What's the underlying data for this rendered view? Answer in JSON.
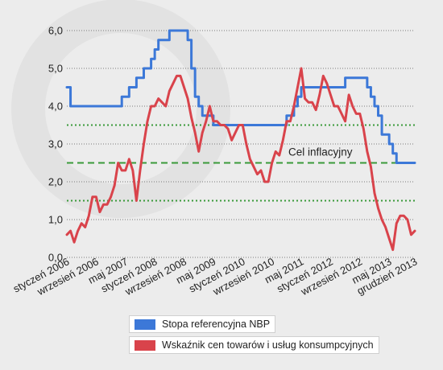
{
  "chart_data": {
    "type": "line",
    "ylim": [
      0,
      6.5
    ],
    "y_ticks": [
      "0,0",
      "1,0",
      "2,0",
      "3,0",
      "4,0",
      "5,0",
      "6,0"
    ],
    "x_tick_labels": [
      "styczeń 2006",
      "wrzesień 2006",
      "maj 2007",
      "styczeń 2008",
      "wrzesień 2008",
      "maj 2009",
      "styczeń 2010",
      "wrzesień 2010",
      "maj 2011",
      "styczeń 2012",
      "wrzesień 2012",
      "maj 2013",
      "grudzień 2013"
    ],
    "x_tick_months": [
      0,
      8,
      16,
      24,
      32,
      40,
      48,
      56,
      64,
      72,
      80,
      88,
      95
    ],
    "grid": true,
    "legend_placement": "bottom",
    "series": [
      {
        "name": "Stopa referencyjna NBP",
        "color": "#3c78d8",
        "start": "2006-01",
        "values": [
          4.5,
          4.0,
          4.0,
          4.0,
          4.0,
          4.0,
          4.0,
          4.0,
          4.0,
          4.0,
          4.0,
          4.0,
          4.0,
          4.0,
          4.0,
          4.25,
          4.25,
          4.5,
          4.5,
          4.75,
          4.75,
          5.0,
          5.0,
          5.25,
          5.5,
          5.75,
          5.75,
          5.75,
          6.0,
          6.0,
          6.0,
          6.0,
          6.0,
          5.75,
          5.0,
          4.25,
          4.0,
          3.75,
          3.75,
          3.75,
          3.5,
          3.5,
          3.5,
          3.5,
          3.5,
          3.5,
          3.5,
          3.5,
          3.5,
          3.5,
          3.5,
          3.5,
          3.5,
          3.5,
          3.5,
          3.5,
          3.5,
          3.5,
          3.5,
          3.5,
          3.75,
          3.75,
          4.0,
          4.25,
          4.5,
          4.5,
          4.5,
          4.5,
          4.5,
          4.5,
          4.5,
          4.5,
          4.5,
          4.5,
          4.5,
          4.5,
          4.75,
          4.75,
          4.75,
          4.75,
          4.75,
          4.75,
          4.5,
          4.25,
          4.0,
          3.75,
          3.25,
          3.25,
          3.0,
          2.75,
          2.5,
          2.5,
          2.5,
          2.5,
          2.5,
          2.5
        ]
      },
      {
        "name": "Wskaźnik cen towarów i usług konsumpcyjnych",
        "color": "#d9434b",
        "start": "2006-01",
        "values": [
          0.6,
          0.7,
          0.4,
          0.7,
          0.9,
          0.8,
          1.1,
          1.6,
          1.6,
          1.2,
          1.4,
          1.4,
          1.6,
          1.9,
          2.5,
          2.3,
          2.3,
          2.6,
          2.3,
          1.5,
          2.3,
          3.0,
          3.6,
          4.0,
          4.0,
          4.2,
          4.1,
          4.0,
          4.4,
          4.6,
          4.8,
          4.8,
          4.5,
          4.2,
          3.7,
          3.3,
          2.8,
          3.3,
          3.6,
          4.0,
          3.6,
          3.6,
          3.5,
          3.5,
          3.4,
          3.1,
          3.3,
          3.5,
          3.5,
          3.0,
          2.6,
          2.4,
          2.2,
          2.3,
          2.0,
          2.0,
          2.5,
          2.8,
          2.7,
          3.1,
          3.6,
          3.6,
          4.0,
          4.5,
          5.0,
          4.2,
          4.1,
          4.1,
          3.9,
          4.3,
          4.8,
          4.6,
          4.3,
          4.0,
          4.0,
          3.8,
          3.6,
          4.3,
          4.0,
          3.8,
          3.8,
          3.4,
          2.8,
          2.4,
          1.7,
          1.3,
          1.0,
          0.8,
          0.5,
          0.2,
          0.9,
          1.1,
          1.1,
          1.0,
          0.6,
          0.7
        ]
      }
    ],
    "reference_lines": [
      {
        "value": 2.5,
        "style": "dashed",
        "color": "#3a9a3a",
        "label": "Cel inflacyjny"
      },
      {
        "value": 3.5,
        "style": "dotted",
        "color": "#3a9a3a"
      },
      {
        "value": 1.5,
        "style": "dotted",
        "color": "#3a9a3a"
      }
    ]
  }
}
